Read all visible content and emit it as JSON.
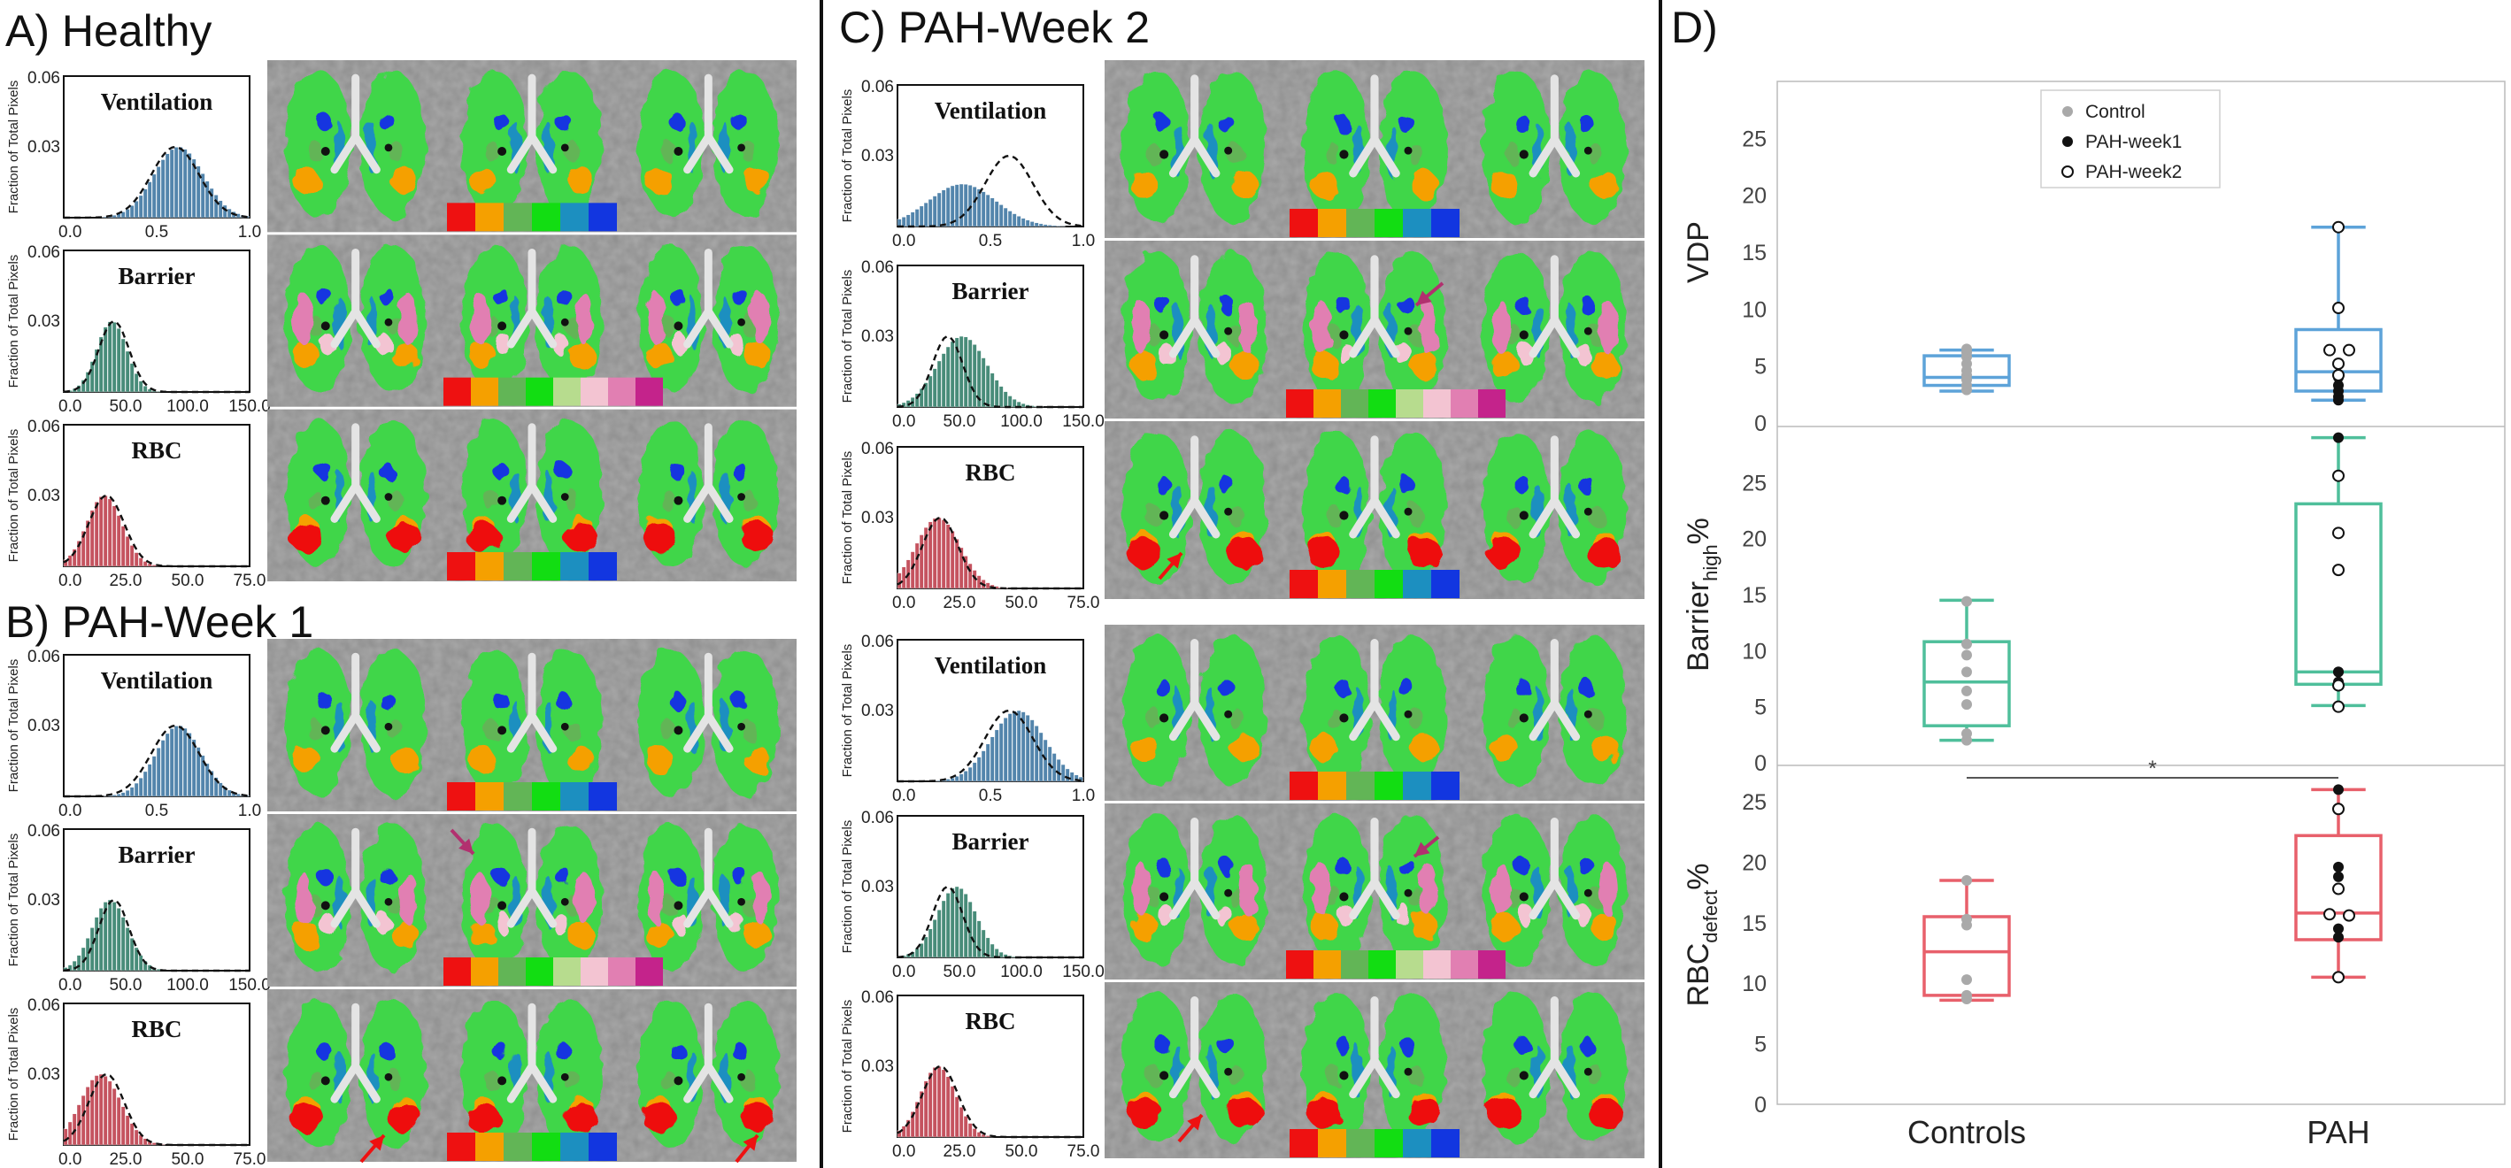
{
  "panels": {
    "A": {
      "title": "A) Healthy"
    },
    "B": {
      "title": "B) PAH-Week 1"
    },
    "C": {
      "title": "C) PAH-Week 2"
    },
    "D": {
      "title": "D)"
    }
  },
  "hist_common": {
    "ylabel": "Fraction of Total Pixels",
    "yticks": [
      "0.06",
      "0.03"
    ]
  },
  "hist_types": {
    "ventilation": {
      "label": "Ventilation",
      "xticks": [
        "0.0",
        "0.5",
        "1.0"
      ],
      "color": "#4a7fa8"
    },
    "barrier": {
      "label": "Barrier",
      "xticks": [
        "0.0",
        "50.0",
        "100.0",
        "150.0"
      ],
      "color": "#3f8672"
    },
    "rbc": {
      "label": "RBC",
      "xticks": [
        "0.0",
        "25.0",
        "50.0",
        "75.0"
      ],
      "color": "#c24a57"
    }
  },
  "histograms": [
    {
      "panel": "A",
      "type": "ventilation",
      "peak": 0.62,
      "width": 0.28
    },
    {
      "panel": "A",
      "type": "barrier",
      "peak": 0.26,
      "width": 0.17
    },
    {
      "panel": "A",
      "type": "rbc",
      "peak": 0.22,
      "width": 0.2
    },
    {
      "panel": "B",
      "type": "ventilation",
      "peak": 0.62,
      "width": 0.26
    },
    {
      "panel": "B",
      "type": "barrier",
      "peak": 0.25,
      "width": 0.2
    },
    {
      "panel": "B",
      "type": "rbc",
      "peak": 0.2,
      "width": 0.23
    },
    {
      "panel": "C1",
      "type": "ventilation",
      "peak": 0.35,
      "width": 0.38
    },
    {
      "panel": "C1",
      "type": "barrier",
      "peak": 0.35,
      "width": 0.28
    },
    {
      "panel": "C1",
      "type": "rbc",
      "peak": 0.22,
      "width": 0.25
    },
    {
      "panel": "C2",
      "type": "ventilation",
      "peak": 0.65,
      "width": 0.3
    },
    {
      "panel": "C2",
      "type": "barrier",
      "peak": 0.32,
      "width": 0.22
    },
    {
      "panel": "C2",
      "type": "rbc",
      "peak": 0.22,
      "width": 0.2
    }
  ],
  "colorbars": {
    "six": [
      "#ee1111",
      "#f5a000",
      "#62b556",
      "#12dd12",
      "#1c8fc0",
      "#1236e0"
    ],
    "eight": [
      "#ee1111",
      "#f5a000",
      "#62b556",
      "#12dd12",
      "#b7dc8e",
      "#f3c4d2",
      "#e17fb2",
      "#c4238b"
    ]
  },
  "chart_data": {
    "type": "box",
    "title": "D)",
    "categories": [
      "Controls",
      "PAH"
    ],
    "legend": {
      "position": "top-center",
      "entries": [
        "Control",
        "PAH-week1",
        "PAH-week2"
      ]
    },
    "subplots": [
      {
        "ylabel": "VDP",
        "ylabel_sub": "",
        "ylabel_suffix": "",
        "ylim": [
          0,
          30
        ],
        "yticks": [
          0,
          5,
          10,
          15,
          20,
          25
        ],
        "color": "#5da3d9",
        "boxes": [
          {
            "category": "Controls",
            "min": 2.8,
            "q1": 3.3,
            "median": 4.0,
            "q3": 5.9,
            "max": 6.4
          },
          {
            "category": "PAH",
            "min": 2.0,
            "q1": 2.8,
            "median": 4.5,
            "q3": 8.2,
            "max": 17.2
          }
        ],
        "points": {
          "Control": [
            2.9,
            3.3,
            3.8,
            4.2,
            4.6,
            5.2,
            5.8,
            6.2,
            6.5
          ],
          "PAH-week1": [
            2.0,
            2.3,
            2.8,
            3.3,
            4.0
          ],
          "PAH-week2": [
            4.2,
            5.2,
            6.4,
            6.4,
            10.1,
            17.2
          ]
        }
      },
      {
        "ylabel": "Barrier",
        "ylabel_sub": "high",
        "ylabel_suffix": "%",
        "ylim": [
          0,
          30
        ],
        "yticks": [
          0,
          5,
          10,
          15,
          20,
          25
        ],
        "color": "#4fbf9b",
        "boxes": [
          {
            "category": "Controls",
            "min": 2.0,
            "q1": 3.3,
            "median": 7.2,
            "q3": 10.8,
            "max": 14.5
          },
          {
            "category": "PAH",
            "min": 5.1,
            "q1": 7.0,
            "median": 8.1,
            "q3": 23.1,
            "max": 29.0
          }
        ],
        "points": {
          "Control": [
            2.0,
            2.6,
            5.2,
            6.4,
            8.1,
            9.6,
            10.6,
            14.4
          ],
          "PAH-week1": [
            29.0,
            8.1,
            8.1,
            7.2
          ],
          "PAH-week2": [
            25.6,
            20.5,
            17.2,
            6.9,
            5.0
          ]
        }
      },
      {
        "ylabel": "RBC",
        "ylabel_sub": "defect",
        "ylabel_suffix": "%",
        "ylim": [
          0,
          28
        ],
        "yticks": [
          0,
          5,
          10,
          15,
          20,
          25
        ],
        "color": "#e8606b",
        "significance": "*",
        "boxes": [
          {
            "category": "Controls",
            "min": 8.6,
            "q1": 9.0,
            "median": 12.6,
            "q3": 15.5,
            "max": 18.5
          },
          {
            "category": "PAH",
            "min": 10.5,
            "q1": 13.6,
            "median": 15.8,
            "q3": 22.2,
            "max": 26.0
          }
        ],
        "points": {
          "Control": [
            8.7,
            9.0,
            10.3,
            14.8,
            15.3,
            18.5
          ],
          "PAH-week1": [
            26.0,
            19.6,
            18.8,
            14.5,
            13.8
          ],
          "PAH-week2": [
            24.4,
            17.8,
            15.7,
            15.6,
            10.5
          ]
        }
      }
    ]
  }
}
